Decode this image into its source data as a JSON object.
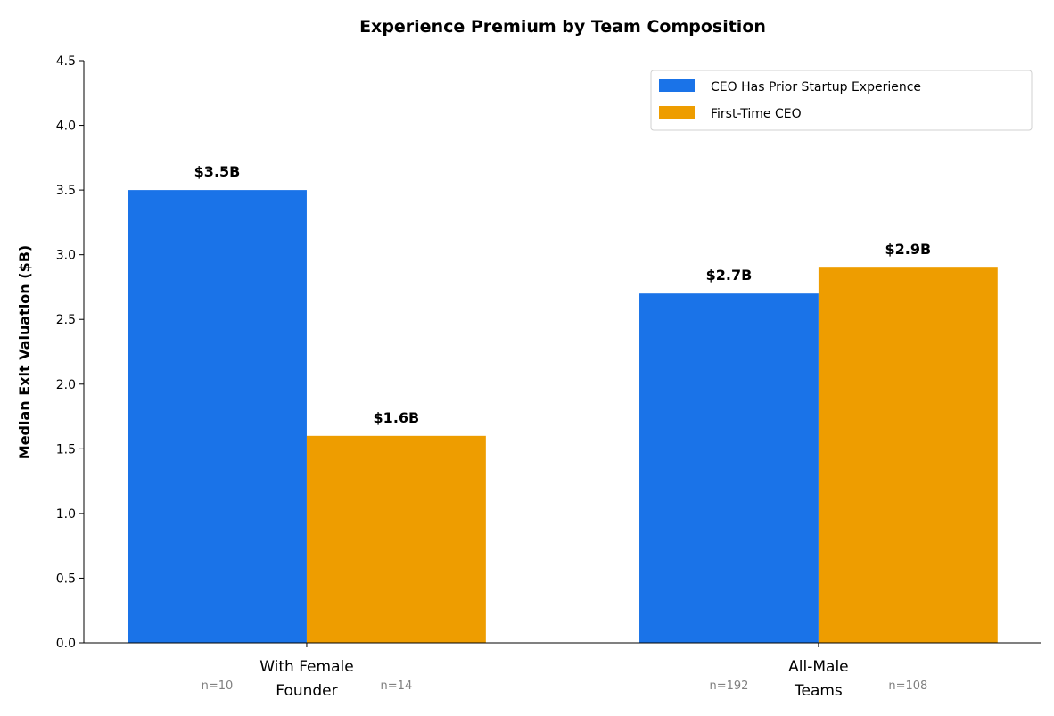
{
  "chart_data": {
    "type": "bar",
    "title": "Experience Premium by Team Composition",
    "xlabel": "",
    "ylabel": "Median Exit Valuation ($B)",
    "ylim": [
      0,
      4.5
    ],
    "yticks": [
      "0.0",
      "0.5",
      "1.0",
      "1.5",
      "2.0",
      "2.5",
      "3.0",
      "3.5",
      "4.0",
      "4.5"
    ],
    "categories": [
      [
        "With Female",
        "Founder"
      ],
      [
        "All-Male",
        "Teams"
      ]
    ],
    "series": [
      {
        "name": "CEO Has Prior Startup Experience",
        "color": "#1a73e8",
        "values": [
          3.5,
          2.7
        ],
        "labels": [
          "$3.5B",
          "$2.7B"
        ],
        "n": [
          "n=10",
          "n=192"
        ]
      },
      {
        "name": "First-Time CEO",
        "color": "#ee9d00",
        "values": [
          1.6,
          2.9
        ],
        "labels": [
          "$1.6B",
          "$2.9B"
        ],
        "n": [
          "n=14",
          "n=108"
        ]
      }
    ],
    "legend": "top-right",
    "grid": false
  }
}
